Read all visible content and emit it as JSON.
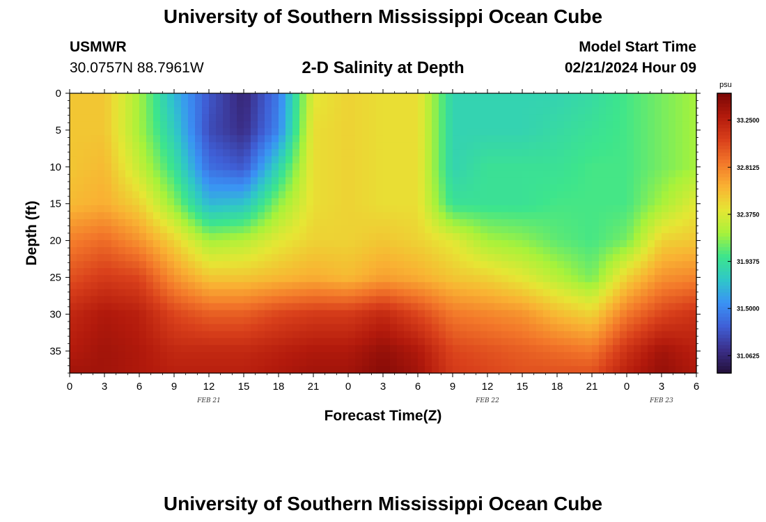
{
  "header": {
    "title": "University of Southern Mississippi Ocean Cube",
    "station": "USMWR",
    "coordinates": "30.0757N  88.7961W",
    "subtitle": "2-D Salinity at Depth",
    "model_start_label": "Model Start Time",
    "model_start_value": "02/21/2024 Hour 09"
  },
  "footer": {
    "title": "University of Southern Mississippi Ocean Cube"
  },
  "chart_data": {
    "type": "heatmap",
    "title": "2-D Salinity at Depth",
    "xlabel": "Forecast Time(Z)",
    "ylabel": "Depth (ft)",
    "x_hours": [
      0,
      54
    ],
    "x_ticks": [
      "0",
      "3",
      "6",
      "9",
      "12",
      "15",
      "18",
      "21",
      "0",
      "3",
      "6",
      "9",
      "12",
      "15",
      "18",
      "21",
      "0",
      "3",
      "6"
    ],
    "date_labels": [
      {
        "label": "FEB 21",
        "hour": 12
      },
      {
        "label": "FEB 22",
        "hour": 36
      },
      {
        "label": "FEB 23",
        "hour": 51
      }
    ],
    "ylim": [
      0,
      38
    ],
    "y_ticks": [
      0,
      5,
      10,
      15,
      20,
      25,
      30,
      35
    ],
    "colorbar": {
      "unit": "psu",
      "range": [
        30.9,
        33.5
      ],
      "ticks": [
        "33.2500",
        "32.8125",
        "32.3750",
        "31.9375",
        "31.5000",
        "31.0625"
      ]
    },
    "color_stops": [
      "#23103a",
      "#3b2f8a",
      "#3f5fd6",
      "#3a92f5",
      "#2fc7c8",
      "#3de58c",
      "#a8f23a",
      "#e6e634",
      "#f9b233",
      "#f3782a",
      "#d9401b",
      "#b31a0c",
      "#7a0706"
    ],
    "time_hours": [
      0,
      3,
      6,
      9,
      12,
      15,
      18,
      21,
      24,
      27,
      30,
      33,
      36,
      39,
      42,
      45,
      48,
      51,
      54
    ],
    "depth_ft": [
      0,
      5,
      10,
      15,
      20,
      25,
      30,
      35,
      38
    ],
    "salinity_psu": [
      [
        32.55,
        32.55,
        32.55,
        32.6,
        32.82,
        33.0,
        33.2,
        33.28,
        33.35
      ],
      [
        32.55,
        32.55,
        32.6,
        32.65,
        32.9,
        33.1,
        33.3,
        33.35,
        33.35
      ],
      [
        32.2,
        32.2,
        32.3,
        32.5,
        32.75,
        33.05,
        33.25,
        33.3,
        33.3
      ],
      [
        31.7,
        31.8,
        31.95,
        32.15,
        32.5,
        32.75,
        33.05,
        33.2,
        33.25
      ],
      [
        31.3,
        31.25,
        31.4,
        31.7,
        32.2,
        32.55,
        32.95,
        33.2,
        33.25
      ],
      [
        31.05,
        31.1,
        31.3,
        31.75,
        32.25,
        32.55,
        32.95,
        33.2,
        33.25
      ],
      [
        31.45,
        31.5,
        31.85,
        32.15,
        32.4,
        32.6,
        33.05,
        33.25,
        33.3
      ],
      [
        32.4,
        32.45,
        32.45,
        32.45,
        32.5,
        32.65,
        33.1,
        33.3,
        33.35
      ],
      [
        32.5,
        32.5,
        32.5,
        32.5,
        32.5,
        32.6,
        33.1,
        33.3,
        33.35
      ],
      [
        32.45,
        32.45,
        32.45,
        32.45,
        32.55,
        32.7,
        33.2,
        33.4,
        33.45
      ],
      [
        32.45,
        32.45,
        32.45,
        32.45,
        32.5,
        32.65,
        33.05,
        33.3,
        33.35
      ],
      [
        31.85,
        31.85,
        31.85,
        31.95,
        32.4,
        32.55,
        32.85,
        33.05,
        33.1
      ],
      [
        31.85,
        31.85,
        31.95,
        31.95,
        32.2,
        32.5,
        32.8,
        33.0,
        33.05
      ],
      [
        31.85,
        31.85,
        31.95,
        31.95,
        32.15,
        32.4,
        32.75,
        32.95,
        33.0
      ],
      [
        31.85,
        31.9,
        31.95,
        32.0,
        32.05,
        32.25,
        32.6,
        32.9,
        33.0
      ],
      [
        31.9,
        31.95,
        32.0,
        32.0,
        32.0,
        32.1,
        32.5,
        32.85,
        33.0
      ],
      [
        32.0,
        32.0,
        32.0,
        32.0,
        32.1,
        32.5,
        32.85,
        33.15,
        33.25
      ],
      [
        32.1,
        32.1,
        32.1,
        32.2,
        32.5,
        32.75,
        33.05,
        33.35,
        33.4
      ],
      [
        32.2,
        32.2,
        32.2,
        32.4,
        32.55,
        32.8,
        33.15,
        33.25,
        33.3
      ]
    ]
  }
}
